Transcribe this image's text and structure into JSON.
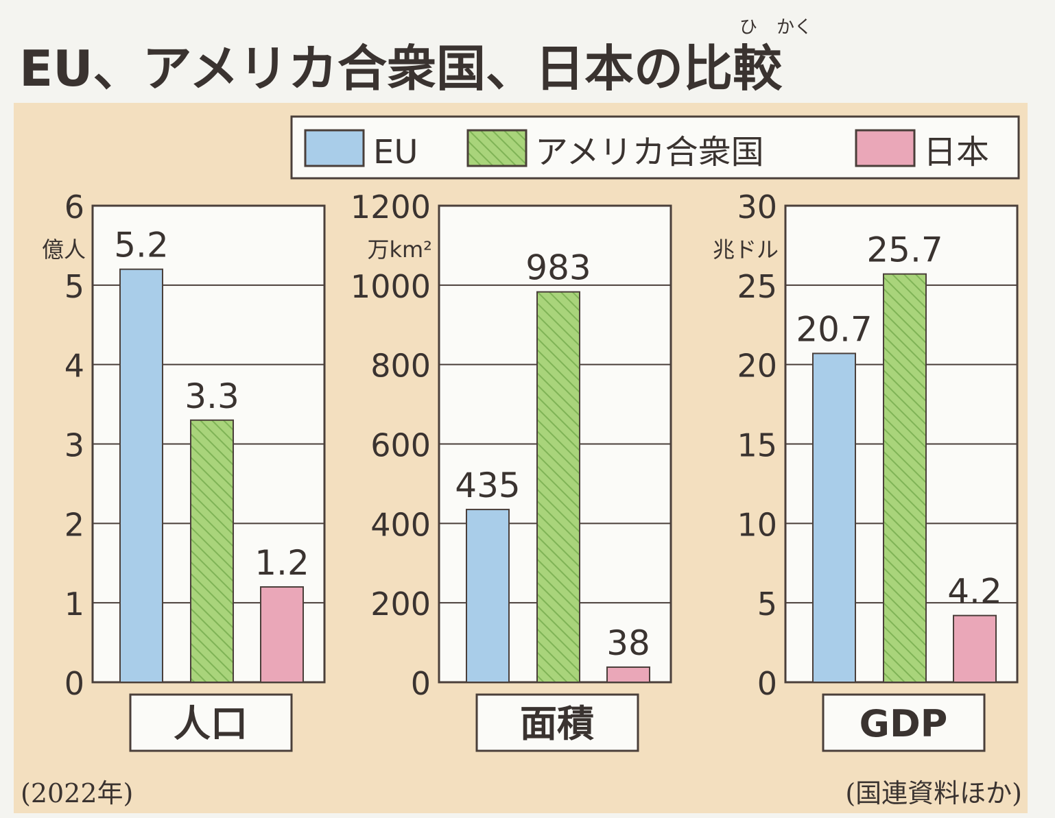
{
  "title": "EU、アメリカ合衆国、日本の比較",
  "title_main": "EU、アメリカ合衆国、日本の",
  "title_kanji": "比較",
  "furigana": [
    "ひ",
    "かく"
  ],
  "footnote_left": "(2022年)",
  "footnote_right": "(国連資料ほか)",
  "colors": {
    "background": "#f3dfbf",
    "EU": "#a9cde9",
    "US": "#a9d47b",
    "JP": "#eaa7b8",
    "frame": "#4a3f3a"
  },
  "chart_data": [
    {
      "type": "bar",
      "title": "人口",
      "unit_label": "億人",
      "categories": [
        "EU",
        "アメリカ合衆国",
        "日本"
      ],
      "values": [
        5.2,
        3.3,
        1.2
      ],
      "value_labels": [
        "5.2",
        "3.3",
        "1.2"
      ],
      "ylim": [
        0,
        6
      ],
      "yticks": [
        "0",
        "1",
        "2",
        "3",
        "4",
        "5",
        "6"
      ],
      "grid": true
    },
    {
      "type": "bar",
      "title": "面積",
      "unit_label": "万km²",
      "categories": [
        "EU",
        "アメリカ合衆国",
        "日本"
      ],
      "values": [
        435,
        983,
        38
      ],
      "value_labels": [
        "435",
        "983",
        "38"
      ],
      "ylim": [
        0,
        1200
      ],
      "yticks": [
        "0",
        "200",
        "400",
        "600",
        "800",
        "1000",
        "1200"
      ],
      "grid": true
    },
    {
      "type": "bar",
      "title": "GDP",
      "unit_label": "兆ドル",
      "categories": [
        "EU",
        "アメリカ合衆国",
        "日本"
      ],
      "values": [
        20.7,
        25.7,
        4.2
      ],
      "value_labels": [
        "20.7",
        "25.7",
        "4.2"
      ],
      "ylim": [
        0,
        30
      ],
      "yticks": [
        "0",
        "5",
        "10",
        "15",
        "20",
        "25",
        "30"
      ],
      "grid": true
    }
  ],
  "legend": {
    "placement": "top-right",
    "items": [
      {
        "label": "EU",
        "key": "EU"
      },
      {
        "label": "アメリカ合衆国",
        "key": "US"
      },
      {
        "label": "日本",
        "key": "JP"
      }
    ]
  }
}
